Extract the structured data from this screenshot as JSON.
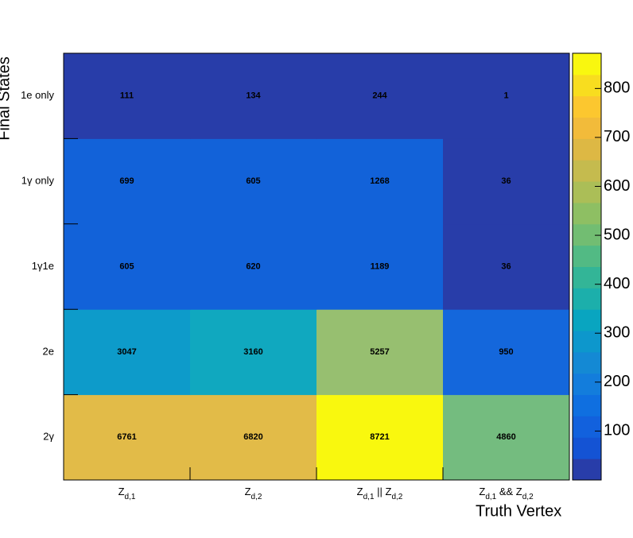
{
  "chart_data": {
    "type": "heatmap",
    "x_title": "Truth Vertex",
    "y_title": "Final States",
    "x_categories": [
      [
        "Z",
        "d,1"
      ],
      [
        "Z",
        "d,2"
      ],
      [
        "Z",
        "d,1",
        " || Z",
        "d,2"
      ],
      [
        "Z",
        "d,1",
        " && Z",
        "d,2"
      ]
    ],
    "y_categories": [
      "2γ",
      "2e",
      "1γ1e",
      "1γ only",
      "1e only"
    ],
    "values": [
      [
        6761,
        6820,
        8721,
        4860
      ],
      [
        3047,
        3160,
        5257,
        950
      ],
      [
        605,
        620,
        1189,
        36
      ],
      [
        699,
        605,
        1268,
        36
      ],
      [
        111,
        134,
        244,
        1
      ]
    ],
    "colors": [
      [
        "#e2bb48",
        "#e2bb48",
        "#f9f80e",
        "#74bc7f"
      ],
      [
        "#0d9bca",
        "#10a8bf",
        "#97bf70",
        "#1467dc"
      ],
      [
        "#1262d9",
        "#1262d9",
        "#1262d9",
        "#283da9"
      ],
      [
        "#1262d9",
        "#1262d9",
        "#1262d9",
        "#283da9"
      ],
      [
        "#283da9",
        "#283da9",
        "#283da9",
        "#283da9"
      ]
    ],
    "palette": [
      "#283da9",
      "#1453d4",
      "#1261dd",
      "#0f6fe0",
      "#137ddc",
      "#1489d4",
      "#0d97cc",
      "#09a5c0",
      "#1cafab",
      "#33b597",
      "#52ba84",
      "#72bd72",
      "#8ebf63",
      "#abbe57",
      "#c5bb4e",
      "#ddb844",
      "#f2bb3a",
      "#fcc72f",
      "#f8dd1f",
      "#f9f70f"
    ],
    "zlim": [
      0,
      872
    ],
    "zticks": [
      100,
      200,
      300,
      400,
      500,
      600,
      700,
      800
    ]
  }
}
